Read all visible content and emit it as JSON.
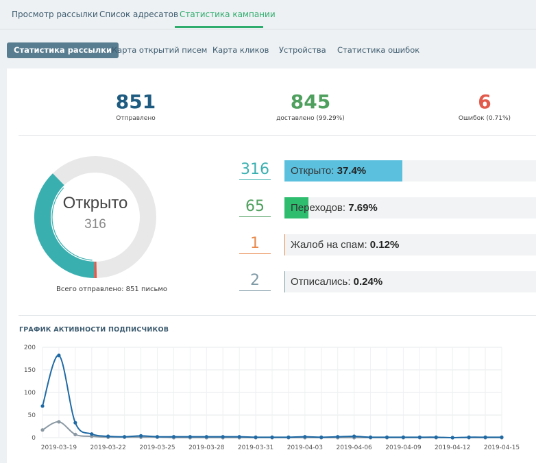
{
  "top_tabs": [
    {
      "label": "Просмотр рассылки",
      "active": false
    },
    {
      "label": "Список адресатов",
      "active": false
    },
    {
      "label": "Статистика кампании",
      "active": true
    }
  ],
  "sub_tabs": [
    {
      "label": "Статистика рассылки",
      "active": true
    },
    {
      "label": "Карта открытий писем",
      "active": false
    },
    {
      "label": "Карта кликов",
      "active": false
    },
    {
      "label": "Устройства",
      "active": false
    },
    {
      "label": "Статистика ошибок",
      "active": false
    }
  ],
  "summary": {
    "sent": {
      "value": "851",
      "label": "Отправлено",
      "color": "#1e5b80"
    },
    "delivered": {
      "value": "845",
      "label": "доставлено",
      "pct": "(99.29%)",
      "color": "#4fa05e"
    },
    "errors": {
      "value": "6",
      "label": "Ошибок",
      "pct": "(0.71%)",
      "color": "#e25a4b"
    }
  },
  "donut": {
    "title": "Открыто",
    "count": "316",
    "open_fraction": 0.374,
    "error_fraction": 0.0071,
    "total_label": "Всего отправлено:",
    "total_value": "851",
    "total_unit": "письмо",
    "colors": {
      "open": "#3aafb0",
      "error": "#e25a4b",
      "rest": "#e8e8e8"
    }
  },
  "metrics": [
    {
      "count": "316",
      "label": "Открыто:",
      "value": "37.4%",
      "fraction": 0.374,
      "color": "#3aafb0",
      "fill": "#5bc0de"
    },
    {
      "count": "65",
      "label": "Переходов:",
      "value": "7.69%",
      "fraction": 0.0769,
      "color": "#4fa05e",
      "fill": "#2ebd6f"
    },
    {
      "count": "1",
      "label": "Жалоб на спам:",
      "value": "0.12%",
      "fraction": 0.0012,
      "color": "#e8894a",
      "fill": "#e8894a"
    },
    {
      "count": "2",
      "label": "Отписались:",
      "value": "0.24%",
      "fraction": 0.0024,
      "color": "#7f9aa6",
      "fill": "#7f9aa6"
    }
  ],
  "chart_title": "ГРАФИК АКТИВНОСТИ ПОДПИСЧИКОВ",
  "chart_data": {
    "type": "line",
    "ylim": [
      0,
      200
    ],
    "yticks": [
      0,
      50,
      100,
      150,
      200
    ],
    "x": [
      "2019-03-18",
      "2019-03-19",
      "2019-03-20",
      "2019-03-21",
      "2019-03-22",
      "2019-03-23",
      "2019-03-24",
      "2019-03-25",
      "2019-03-26",
      "2019-03-27",
      "2019-03-28",
      "2019-03-29",
      "2019-03-30",
      "2019-03-31",
      "2019-04-01",
      "2019-04-02",
      "2019-04-03",
      "2019-04-04",
      "2019-04-05",
      "2019-04-06",
      "2019-04-07",
      "2019-04-08",
      "2019-04-09",
      "2019-04-10",
      "2019-04-11",
      "2019-04-12",
      "2019-04-13",
      "2019-04-14",
      "2019-04-15"
    ],
    "xticks": [
      "2019-03-19",
      "2019-03-22",
      "2019-03-25",
      "2019-03-28",
      "2019-03-31",
      "2019-04-03",
      "2019-04-06",
      "2019-04-09",
      "2019-04-12",
      "2019-04-15"
    ],
    "series": [
      {
        "color": "#1f6aa5",
        "values": [
          70,
          182,
          33,
          8,
          3,
          2,
          4,
          2,
          2,
          2,
          2,
          2,
          2,
          1,
          1,
          1,
          2,
          1,
          2,
          3,
          1,
          1,
          1,
          1,
          1,
          0,
          1,
          1,
          1
        ]
      },
      {
        "color": "#8a98a3",
        "values": [
          17,
          35,
          7,
          3,
          1,
          1,
          1,
          1,
          0,
          0,
          0,
          0,
          0,
          0,
          0,
          0,
          0,
          0,
          0,
          0,
          0,
          0,
          0,
          0,
          0,
          0,
          0,
          0,
          0
        ]
      }
    ]
  }
}
